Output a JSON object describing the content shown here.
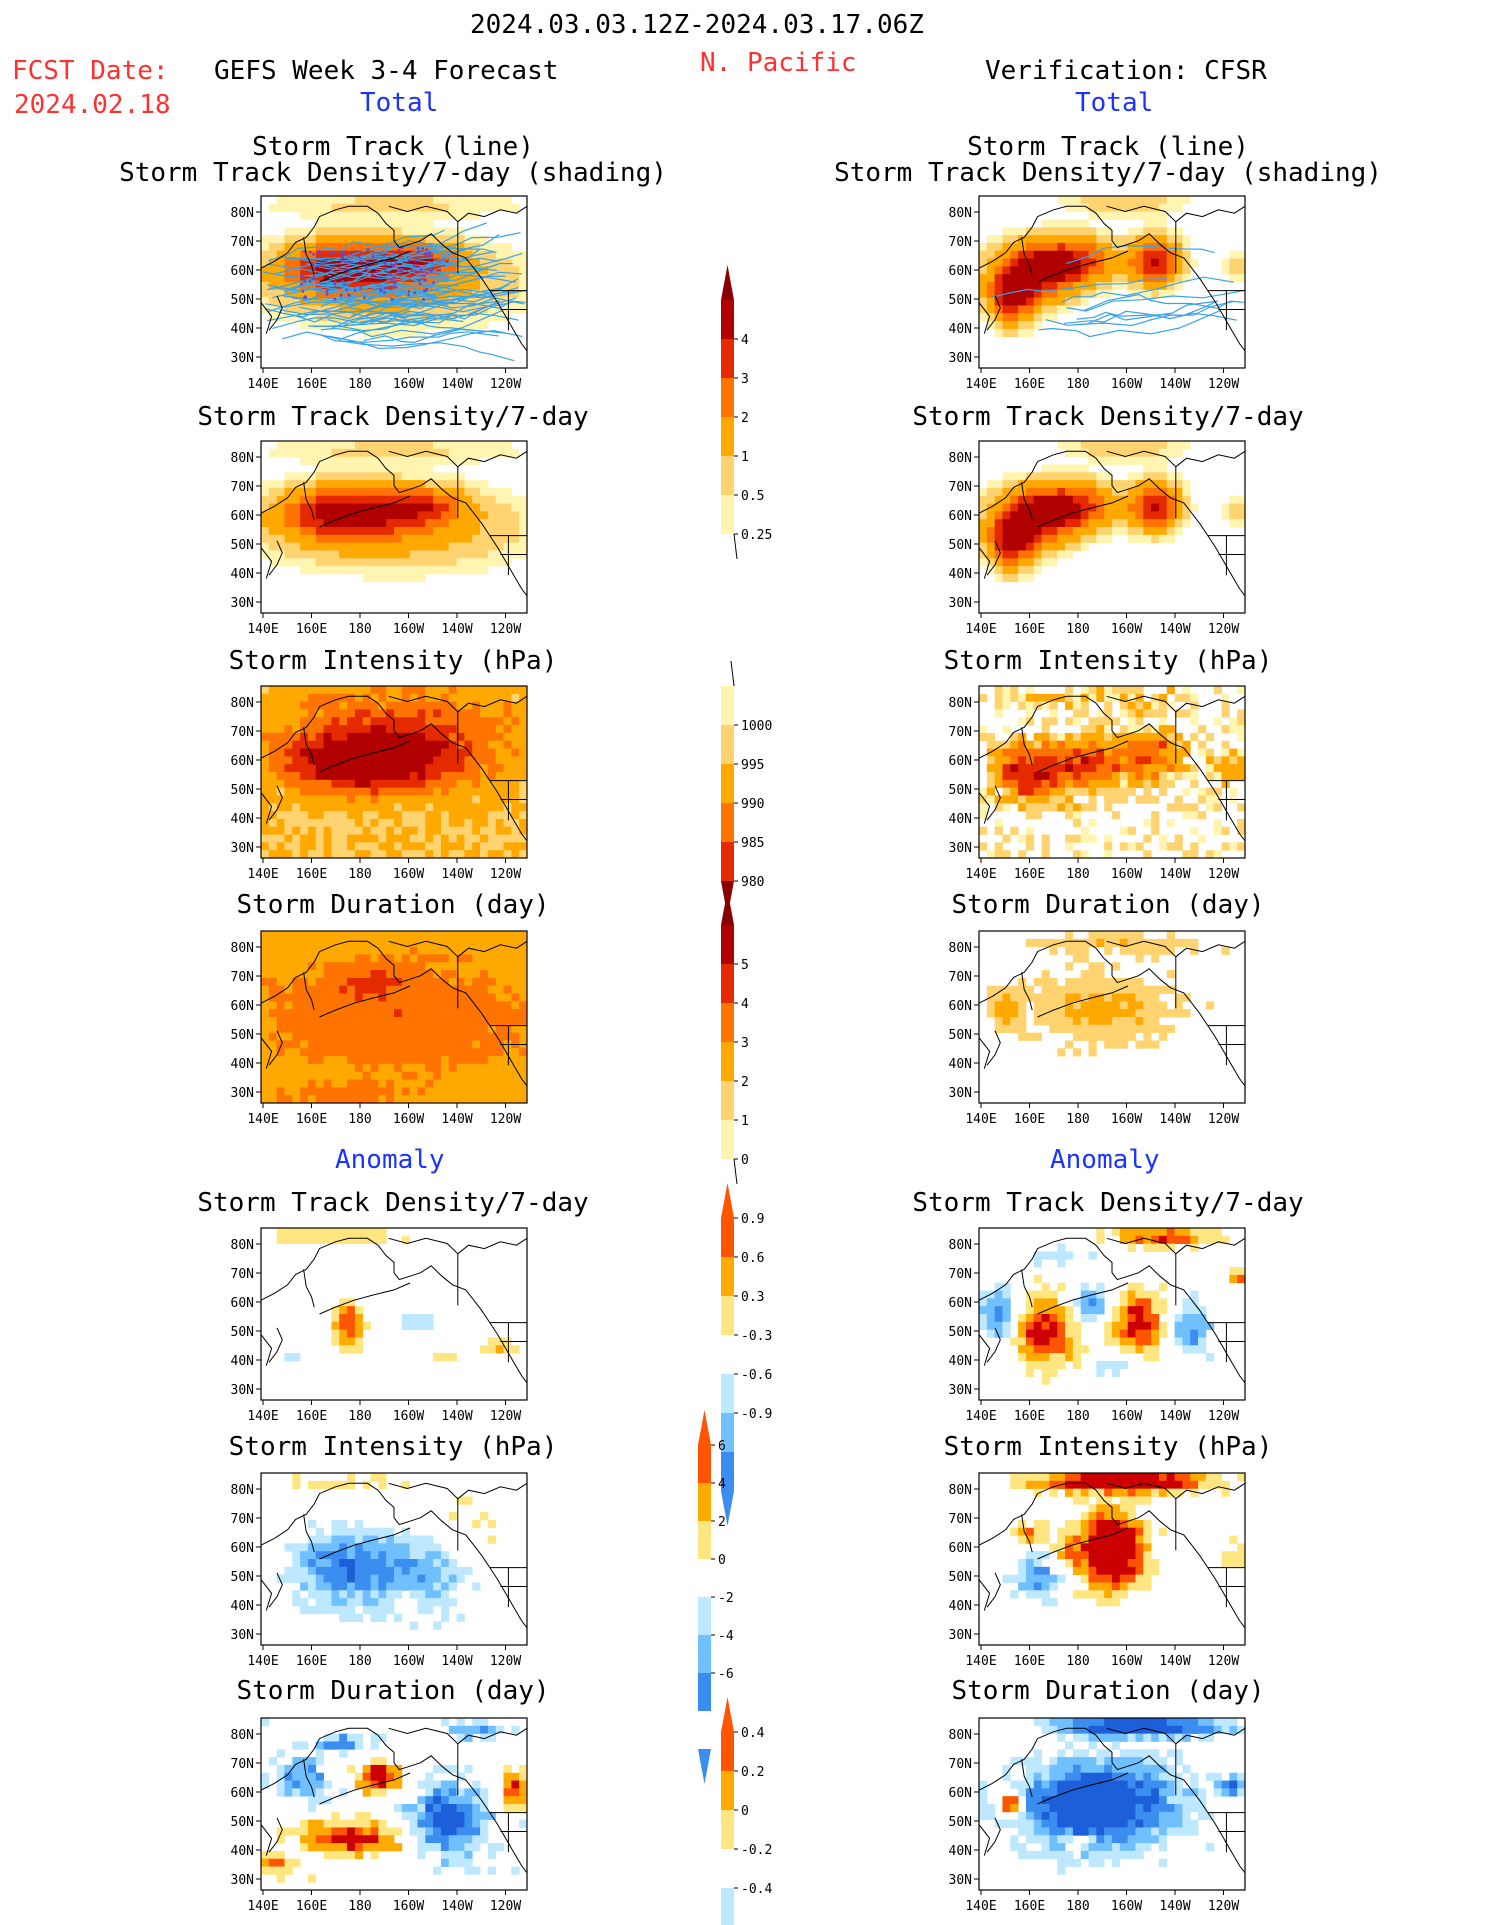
{
  "header": {
    "period": "2024.03.03.12Z-2024.03.17.06Z",
    "fcst_label": "FCST Date:",
    "fcst_date": "2024.02.18",
    "model": "GEFS Week 3-4 Forecast",
    "region": "N. Pacific",
    "verification": "Verification: CFSR"
  },
  "sections": {
    "total": "Total",
    "anomaly": "Anomaly"
  },
  "titles": {
    "track_line": "Storm Track (line)",
    "track_shading": "Storm Track Density/7-day (shading)",
    "density": "Storm Track Density/7-day",
    "intensity": "Storm Intensity (hPa)",
    "duration": "Storm Duration (day)"
  },
  "axes": {
    "lon_ticks": [
      "140E",
      "160E",
      "180",
      "160W",
      "140W",
      "120W"
    ],
    "lat_ticks": [
      "80N",
      "70N",
      "60N",
      "50N",
      "40N",
      "30N"
    ]
  },
  "colors": {
    "total_scale": [
      "#fff5b0",
      "#ffd470",
      "#ffa800",
      "#ff7300",
      "#e52a00",
      "#b00000",
      "#8a0000"
    ],
    "anomaly_warm": [
      "#ffe680",
      "#ffaa00",
      "#ff5500",
      "#cc0000"
    ],
    "anomaly_cool": [
      "#bde8ff",
      "#70c0ff",
      "#3b8ef0",
      "#1c5fd8"
    ],
    "track_line": "#3aa3e8",
    "track_points": "#6a48c9"
  },
  "colorbars": {
    "density_total": [
      "4",
      "3",
      "2",
      "1",
      "0.5",
      "0.25"
    ],
    "intensity_total": [
      "1000",
      "995",
      "990",
      "985",
      "980"
    ],
    "duration_total": [
      "5",
      "4",
      "3",
      "2",
      "1",
      "0"
    ],
    "density_anom": [
      "0.9",
      "0.6",
      "0.3",
      "-0.3",
      "-0.6",
      "-0.9"
    ],
    "intensity_anom": [
      "6",
      "4",
      "2",
      "0",
      "-2",
      "-4",
      "-6"
    ],
    "duration_anom": [
      "0.4",
      "0.2",
      "0",
      "-0.2",
      "-0.4"
    ]
  },
  "chart_data": [
    {
      "type": "heatmap",
      "title": "Storm Track (line) / Storm Track Density/7-day (shading)",
      "source": "GEFS",
      "x": "longitude 140E-120W",
      "y": "latitude 25N-85N",
      "peak_value": 4,
      "peak_location": "50N 170E"
    },
    {
      "type": "heatmap",
      "title": "Storm Track (line) / Storm Track Density/7-day (shading)",
      "source": "CFSR",
      "peak_value": 4,
      "peak_location": "45N 170E and 55N 145W"
    },
    {
      "type": "heatmap",
      "title": "Storm Track Density/7-day",
      "source": "GEFS",
      "peak_value": 4,
      "peak_location": "52N 175E"
    },
    {
      "type": "heatmap",
      "title": "Storm Track Density/7-day",
      "source": "CFSR",
      "peak_value": 4,
      "peak_location": "45N 170E and 55N 145W"
    },
    {
      "type": "heatmap",
      "title": "Storm Intensity (hPa)",
      "source": "GEFS",
      "min_value": 980,
      "min_location": "52N 175E"
    },
    {
      "type": "heatmap",
      "title": "Storm Intensity (hPa)",
      "source": "CFSR",
      "min_value": 985,
      "min_location": "48N 165E"
    },
    {
      "type": "heatmap",
      "title": "Storm Duration (day)",
      "source": "GEFS",
      "range": [
        2,
        4
      ]
    },
    {
      "type": "heatmap",
      "title": "Storm Duration (day)",
      "source": "CFSR",
      "range": [
        1,
        3
      ]
    },
    {
      "type": "heatmap",
      "title": "Storm Track Density/7-day Anomaly",
      "source": "GEFS",
      "range": [
        -0.3,
        0.9
      ]
    },
    {
      "type": "heatmap",
      "title": "Storm Track Density/7-day Anomaly",
      "source": "CFSR",
      "range": [
        -0.9,
        0.9
      ]
    },
    {
      "type": "heatmap",
      "title": "Storm Intensity (hPa) Anomaly",
      "source": "GEFS",
      "range": [
        -4,
        2
      ]
    },
    {
      "type": "heatmap",
      "title": "Storm Intensity (hPa) Anomaly",
      "source": "CFSR",
      "range": [
        -4,
        6
      ]
    },
    {
      "type": "heatmap",
      "title": "Storm Duration (day) Anomaly",
      "source": "GEFS",
      "range": [
        -0.4,
        0.4
      ]
    },
    {
      "type": "heatmap",
      "title": "Storm Duration (day) Anomaly",
      "source": "CFSR",
      "range": [
        -0.4,
        0.2
      ]
    }
  ]
}
